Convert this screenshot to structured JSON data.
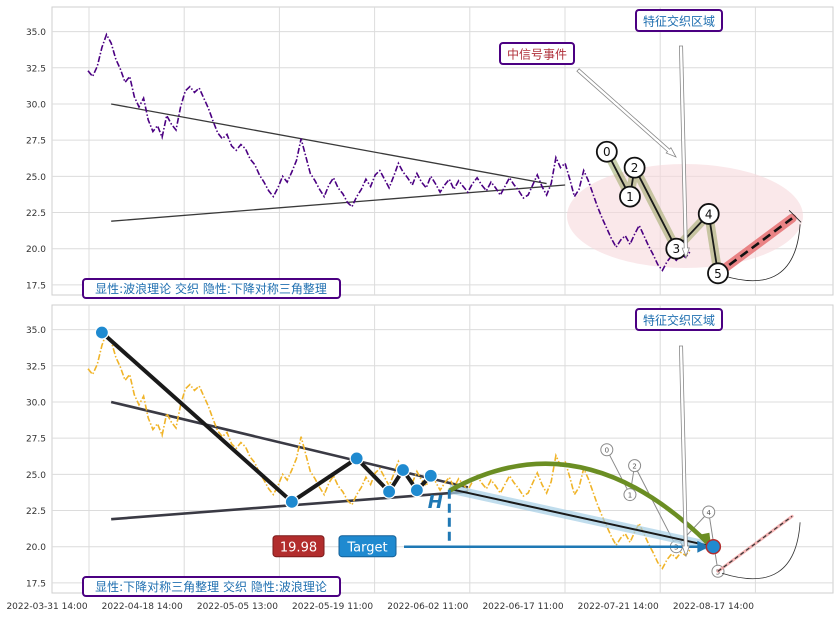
{
  "chart_data": [
    {
      "type": "line",
      "panel": "top",
      "ylim": [
        16.8,
        36.7
      ],
      "yticks": [
        "17.5",
        "20.0",
        "22.5",
        "25.0",
        "27.5",
        "30.0",
        "32.5",
        "35.0"
      ],
      "grid": true,
      "series": [
        {
          "style": "dash-dot",
          "color": "#4b0082",
          "x_range": [
            "2022-03-31",
            "2022-08-21"
          ],
          "values": [
            32.3,
            31.9,
            32.6,
            33.9,
            34.8,
            34.2,
            33.1,
            32.4,
            31.5,
            31.9,
            30.5,
            29.8,
            30.4,
            28.9,
            28.1,
            28.5,
            27.7,
            29.2,
            28.6,
            28.2,
            29.8,
            30.9,
            31.2,
            30.8,
            31.1,
            30.4,
            29.7,
            28.8,
            28.0,
            27.6,
            27.9,
            27.1,
            26.8,
            27.2,
            26.9,
            26.2,
            25.8,
            25.1,
            24.6,
            24.0,
            23.6,
            24.2,
            25.0,
            24.6,
            25.3,
            26.1,
            27.6,
            26.4,
            25.2,
            24.7,
            24.1,
            23.6,
            24.4,
            24.9,
            24.2,
            23.8,
            23.2,
            22.9,
            23.6,
            24.1,
            24.8,
            24.3,
            25.1,
            25.4,
            24.8,
            24.2,
            25.0,
            25.9,
            25.3,
            24.9,
            24.4,
            25.2,
            24.6,
            24.2,
            25.0,
            24.5,
            23.9,
            24.4,
            24.8,
            24.1,
            24.7,
            24.3,
            23.9,
            24.5,
            24.9,
            24.4,
            24.0,
            24.6,
            24.2,
            23.7,
            24.3,
            24.9,
            24.4,
            24.0,
            23.5,
            23.7,
            24.4,
            25.1,
            24.3,
            23.7,
            24.5,
            26.3,
            25.6,
            25.9,
            24.8,
            23.6,
            24.1,
            25.4,
            24.7,
            23.8,
            22.9,
            22.1,
            21.4,
            20.7,
            20.1,
            20.6,
            20.9,
            20.3,
            21.0,
            21.6,
            20.9,
            20.2,
            19.6,
            18.9,
            18.5,
            19.1,
            19.5,
            19.2,
            19.6,
            19.4,
            19.8
          ]
        }
      ],
      "triangle_lines": [
        {
          "from": [
            5,
            30.0
          ],
          "to": [
            99,
            24.5
          ]
        },
        {
          "from": [
            5,
            21.9
          ],
          "to": [
            103,
            24.4
          ]
        }
      ],
      "wave_points": [
        {
          "label": "0",
          "x": 112,
          "y": 26.7
        },
        {
          "label": "1",
          "x": 117,
          "y": 23.6
        },
        {
          "label": "2",
          "x": 118,
          "y": 25.6
        },
        {
          "label": "3",
          "x": 127,
          "y": 20.0
        },
        {
          "label": "4",
          "x": 134,
          "y": 22.4
        },
        {
          "label": "5",
          "x": 136,
          "y": 18.3
        }
      ],
      "projection": {
        "from": [
          136,
          18.3
        ],
        "to": [
          152,
          22.1
        ]
      },
      "annotations": [
        "中信号事件",
        "特征交织区域"
      ],
      "caption": "显性:波浪理论 交织 隐性:下降对称三角整理"
    },
    {
      "type": "line",
      "panel": "bottom",
      "ylim": [
        16.8,
        36.7
      ],
      "yticks": [
        "17.5",
        "20.0",
        "22.5",
        "25.0",
        "27.5",
        "30.0",
        "32.5",
        "35.0"
      ],
      "grid": true,
      "series": [
        {
          "style": "dash-dot",
          "color": "#f0b429",
          "x_range": [
            "2022-03-31",
            "2022-08-21"
          ]
        }
      ],
      "zigzag_points": [
        {
          "x": 3,
          "y": 34.8
        },
        {
          "x": 44,
          "y": 23.1
        },
        {
          "x": 58,
          "y": 26.1
        },
        {
          "x": 65,
          "y": 23.8
        },
        {
          "x": 68,
          "y": 25.3
        },
        {
          "x": 71,
          "y": 23.9
        },
        {
          "x": 74,
          "y": 24.9
        }
      ],
      "triangle_lines": [
        {
          "from": [
            5,
            30.0
          ],
          "to": [
            82,
            24.1
          ]
        },
        {
          "from": [
            5,
            21.9
          ],
          "to": [
            82,
            23.8
          ]
        }
      ],
      "breakout": {
        "from": [
          78,
          24.0
        ],
        "to": [
          135,
          20.0
        ]
      },
      "height_label": "H",
      "target_value": "19.98",
      "target_label": "Target",
      "annotations": [
        "特征交织区域"
      ],
      "caption": "显性:下降对称三角整理 交织 隐性:波浪理论"
    }
  ],
  "x_ticks": [
    "2022-03-31 14:00",
    "2022-04-18 14:00",
    "2022-05-05 13:00",
    "2022-05-19 11:00",
    "2022-06-02 11:00",
    "2022-06-17 11:00",
    "2022-07-21 14:00",
    "2022-08-17 14:00"
  ]
}
